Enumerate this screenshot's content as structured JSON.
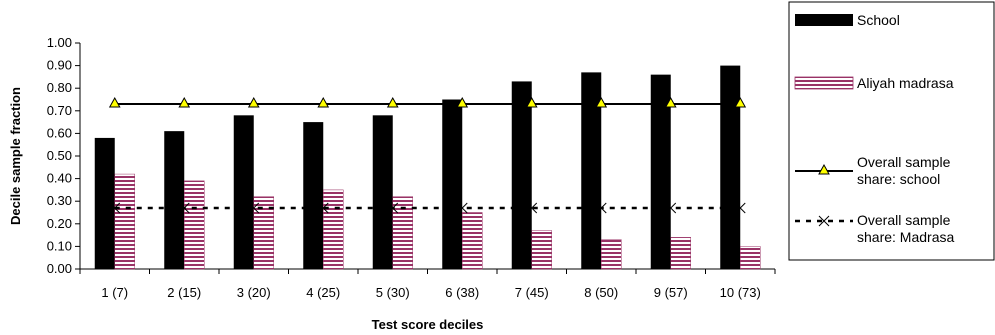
{
  "chart_data": {
    "type": "bar",
    "xlabel": "Test score deciles",
    "ylabel": "Decile sample fraction",
    "ylim": [
      0,
      1.0
    ],
    "yticks": [
      "1.00",
      "0.90",
      "0.80",
      "0.70",
      "0.60",
      "0.50",
      "0.40",
      "0.30",
      "0.20",
      "0.10",
      "0.00"
    ],
    "categories": [
      "1 (7)",
      "2 (15)",
      "3 (20)",
      "4 (25)",
      "5 (30)",
      "6 (38)",
      "7 (45)",
      "8 (50)",
      "9 (57)",
      "10 (73)"
    ],
    "series": [
      {
        "name": "School",
        "type": "bar",
        "color": "#000000",
        "values": [
          0.58,
          0.61,
          0.68,
          0.65,
          0.68,
          0.75,
          0.83,
          0.87,
          0.86,
          0.9
        ]
      },
      {
        "name": "Aliyah madrasa",
        "type": "bar",
        "pattern": "horizontal-stripes",
        "color": "#993366",
        "values": [
          0.42,
          0.39,
          0.32,
          0.35,
          0.32,
          0.25,
          0.17,
          0.13,
          0.14,
          0.1
        ]
      },
      {
        "name_lines": [
          "Overall sample",
          "share: school"
        ],
        "type": "line",
        "style": "solid",
        "marker": "triangle",
        "marker_color": "#ffff00",
        "values": [
          0.73,
          0.73,
          0.73,
          0.73,
          0.73,
          0.73,
          0.73,
          0.73,
          0.73,
          0.73
        ]
      },
      {
        "name_lines": [
          "Overall sample",
          "share: Madrasa"
        ],
        "type": "line",
        "style": "dashed",
        "marker": "x",
        "values": [
          0.27,
          0.27,
          0.27,
          0.27,
          0.27,
          0.27,
          0.27,
          0.27,
          0.27,
          0.27
        ]
      }
    ],
    "grid": false,
    "legend_position": "right"
  }
}
